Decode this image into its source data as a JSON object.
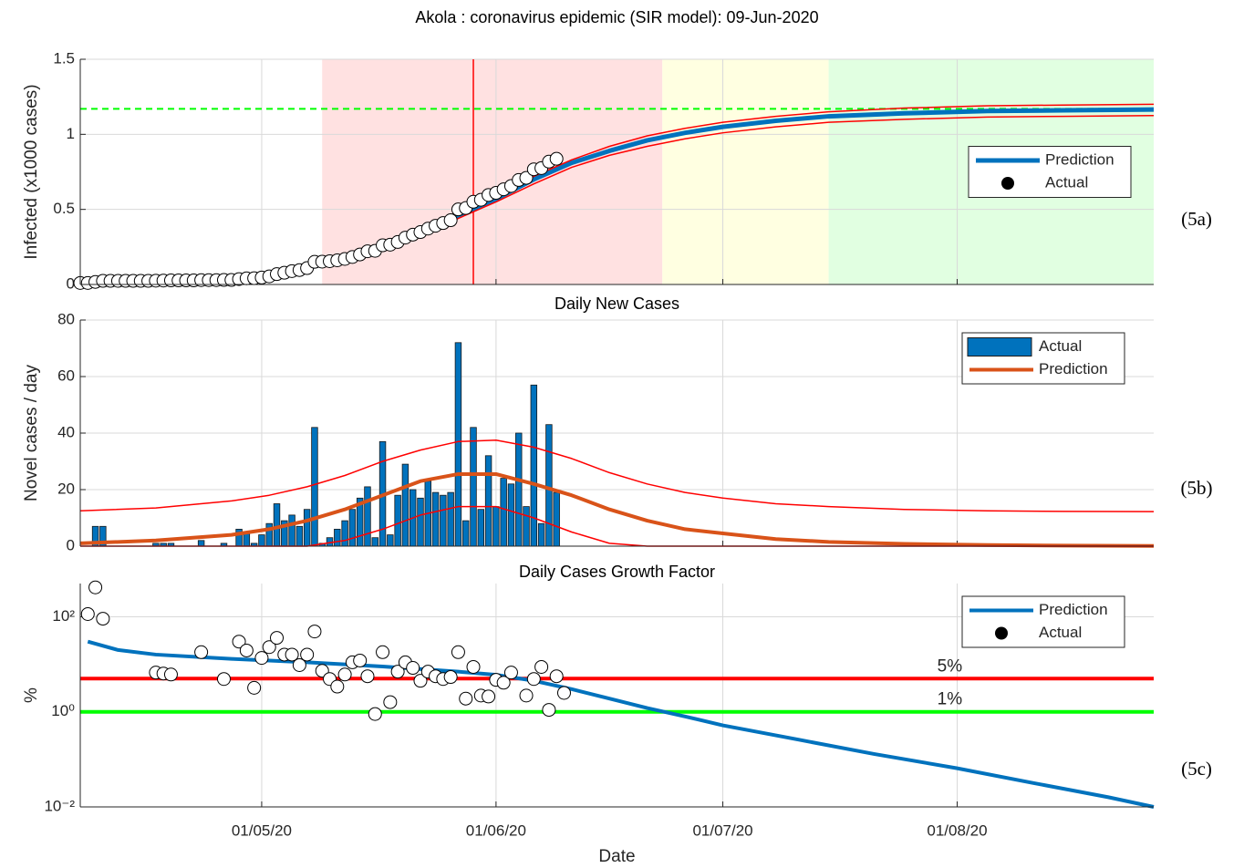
{
  "chart_data": [
    {
      "type": "line",
      "title": "Akola : coronavirus epidemic (SIR model):  09-Jun-2020",
      "tag": "(5a)",
      "ylabel": "Infected (x1000 cases)",
      "xlim": [
        "2020-04-07",
        "2020-08-27"
      ],
      "xticks": [
        "2020-05-01",
        "2020-06-01",
        "2020-07-01",
        "2020-08-01"
      ],
      "ylim": [
        0,
        1.5
      ],
      "yticks": [
        0,
        0.5,
        1,
        1.5
      ],
      "grid": true,
      "legend": "east",
      "regions": [
        {
          "from": "2020-05-09",
          "to": "2020-06-23",
          "color": "#ffe1e1"
        },
        {
          "from": "2020-06-23",
          "to": "2020-07-15",
          "color": "#ffffe1"
        },
        {
          "from": "2020-07-15",
          "to": "2020-08-27",
          "color": "#e1ffe1"
        }
      ],
      "hlines": [
        {
          "value": 1.17,
          "color": "#00ff00",
          "width": 2,
          "dashed": true
        }
      ],
      "vlines": [
        {
          "x": "2020-05-29",
          "color": "#ff0000"
        }
      ],
      "series": [
        {
          "name": "Prediction",
          "mode": "line",
          "color": "#0072bd",
          "width": 5,
          "x": [
            "2020-04-07",
            "2020-04-17",
            "2020-04-27",
            "2020-05-02",
            "2020-05-07",
            "2020-05-12",
            "2020-05-17",
            "2020-05-22",
            "2020-05-27",
            "2020-06-01",
            "2020-06-06",
            "2020-06-11",
            "2020-06-16",
            "2020-06-21",
            "2020-06-26",
            "2020-07-01",
            "2020-07-08",
            "2020-07-15",
            "2020-07-25",
            "2020-08-05",
            "2020-08-15",
            "2020-08-27"
          ],
          "values": [
            0.02,
            0.03,
            0.05,
            0.07,
            0.11,
            0.17,
            0.25,
            0.35,
            0.46,
            0.57,
            0.7,
            0.81,
            0.89,
            0.96,
            1.01,
            1.05,
            1.09,
            1.12,
            1.14,
            1.155,
            1.16,
            1.165
          ]
        },
        {
          "mode": "line",
          "color": "#ff0000",
          "width": 1.5,
          "x": [
            "2020-04-07",
            "2020-04-17",
            "2020-04-27",
            "2020-05-02",
            "2020-05-07",
            "2020-05-12",
            "2020-05-17",
            "2020-05-22",
            "2020-05-27",
            "2020-06-01",
            "2020-06-06",
            "2020-06-11",
            "2020-06-16",
            "2020-06-21",
            "2020-06-26",
            "2020-07-01",
            "2020-07-08",
            "2020-07-15",
            "2020-07-25",
            "2020-08-05",
            "2020-08-15",
            "2020-08-27"
          ],
          "values": [
            0.03,
            0.04,
            0.06,
            0.08,
            0.12,
            0.18,
            0.26,
            0.37,
            0.48,
            0.59,
            0.72,
            0.83,
            0.92,
            0.99,
            1.04,
            1.08,
            1.12,
            1.15,
            1.175,
            1.19,
            1.195,
            1.2
          ]
        },
        {
          "mode": "line",
          "color": "#ff0000",
          "width": 1.5,
          "x": [
            "2020-04-07",
            "2020-04-17",
            "2020-04-27",
            "2020-05-02",
            "2020-05-07",
            "2020-05-12",
            "2020-05-17",
            "2020-05-22",
            "2020-05-27",
            "2020-06-01",
            "2020-06-06",
            "2020-06-11",
            "2020-06-16",
            "2020-06-21",
            "2020-06-26",
            "2020-07-01",
            "2020-07-08",
            "2020-07-15",
            "2020-07-25",
            "2020-08-05",
            "2020-08-15",
            "2020-08-27"
          ],
          "values": [
            0.01,
            0.02,
            0.04,
            0.06,
            0.1,
            0.16,
            0.24,
            0.33,
            0.44,
            0.55,
            0.67,
            0.78,
            0.86,
            0.92,
            0.97,
            1.01,
            1.05,
            1.08,
            1.1,
            1.115,
            1.12,
            1.125
          ]
        },
        {
          "name": "Actual",
          "mode": "markers",
          "color": "#000000",
          "marker_fill": "#ffffff",
          "x": [
            "2020-04-07",
            "2020-04-08",
            "2020-04-09",
            "2020-04-10",
            "2020-04-11",
            "2020-04-12",
            "2020-04-13",
            "2020-04-14",
            "2020-04-15",
            "2020-04-16",
            "2020-04-17",
            "2020-04-18",
            "2020-04-19",
            "2020-04-20",
            "2020-04-21",
            "2020-04-22",
            "2020-04-23",
            "2020-04-24",
            "2020-04-25",
            "2020-04-26",
            "2020-04-27",
            "2020-04-28",
            "2020-04-29",
            "2020-04-30",
            "2020-05-01",
            "2020-05-02",
            "2020-05-03",
            "2020-05-04",
            "2020-05-05",
            "2020-05-06",
            "2020-05-07",
            "2020-05-08",
            "2020-05-09",
            "2020-05-10",
            "2020-05-11",
            "2020-05-12",
            "2020-05-13",
            "2020-05-14",
            "2020-05-15",
            "2020-05-16",
            "2020-05-17",
            "2020-05-18",
            "2020-05-19",
            "2020-05-20",
            "2020-05-21",
            "2020-05-22",
            "2020-05-23",
            "2020-05-24",
            "2020-05-25",
            "2020-05-26",
            "2020-05-27",
            "2020-05-28",
            "2020-05-29",
            "2020-05-30",
            "2020-05-31",
            "2020-06-01",
            "2020-06-02",
            "2020-06-03",
            "2020-06-04",
            "2020-06-05",
            "2020-06-06",
            "2020-06-07",
            "2020-06-08",
            "2020-06-09"
          ],
          "values": [
            0.01,
            0.01,
            0.017,
            0.024,
            0.024,
            0.024,
            0.024,
            0.024,
            0.024,
            0.024,
            0.025,
            0.026,
            0.027,
            0.027,
            0.027,
            0.027,
            0.029,
            0.029,
            0.029,
            0.03,
            0.03,
            0.036,
            0.041,
            0.042,
            0.046,
            0.054,
            0.069,
            0.078,
            0.089,
            0.096,
            0.109,
            0.151,
            0.152,
            0.155,
            0.161,
            0.17,
            0.183,
            0.2,
            0.221,
            0.224,
            0.261,
            0.265,
            0.283,
            0.312,
            0.332,
            0.349,
            0.372,
            0.391,
            0.409,
            0.428,
            0.5,
            0.509,
            0.551,
            0.564,
            0.596,
            0.61,
            0.634,
            0.656,
            0.696,
            0.71,
            0.767,
            0.775,
            0.818,
            0.837
          ]
        }
      ]
    },
    {
      "type": "bar",
      "title": "Daily New Cases",
      "tag": "(5b)",
      "ylabel": "Novel cases / day",
      "xlim": [
        "2020-04-07",
        "2020-08-27"
      ],
      "xticks": [
        "2020-05-01",
        "2020-06-01",
        "2020-07-01",
        "2020-08-01"
      ],
      "ylim": [
        0,
        80
      ],
      "yticks": [
        0,
        20,
        40,
        60,
        80
      ],
      "grid": true,
      "legend": "northeast",
      "series": [
        {
          "name": "Actual",
          "mode": "bar",
          "color": "#0072bd",
          "edgecolor": "#1a1a1a",
          "x": [
            "2020-04-07",
            "2020-04-08",
            "2020-04-09",
            "2020-04-10",
            "2020-04-11",
            "2020-04-12",
            "2020-04-13",
            "2020-04-14",
            "2020-04-15",
            "2020-04-16",
            "2020-04-17",
            "2020-04-18",
            "2020-04-19",
            "2020-04-20",
            "2020-04-21",
            "2020-04-22",
            "2020-04-23",
            "2020-04-24",
            "2020-04-25",
            "2020-04-26",
            "2020-04-27",
            "2020-04-28",
            "2020-04-29",
            "2020-04-30",
            "2020-05-01",
            "2020-05-02",
            "2020-05-03",
            "2020-05-04",
            "2020-05-05",
            "2020-05-06",
            "2020-05-07",
            "2020-05-08",
            "2020-05-09",
            "2020-05-10",
            "2020-05-11",
            "2020-05-12",
            "2020-05-13",
            "2020-05-14",
            "2020-05-15",
            "2020-05-16",
            "2020-05-17",
            "2020-05-18",
            "2020-05-19",
            "2020-05-20",
            "2020-05-21",
            "2020-05-22",
            "2020-05-23",
            "2020-05-24",
            "2020-05-25",
            "2020-05-26",
            "2020-05-27",
            "2020-05-28",
            "2020-05-29",
            "2020-05-30",
            "2020-05-31",
            "2020-06-01",
            "2020-06-02",
            "2020-06-03",
            "2020-06-04",
            "2020-06-05",
            "2020-06-06",
            "2020-06-07",
            "2020-06-08",
            "2020-06-09"
          ],
          "values": [
            0,
            0,
            7,
            7,
            0,
            0,
            0,
            0,
            0,
            0,
            1,
            1,
            1,
            0,
            0,
            0,
            2,
            0,
            0,
            1,
            0,
            6,
            5,
            1,
            4,
            8,
            15,
            9,
            11,
            7,
            13,
            42,
            1,
            3,
            6,
            9,
            13,
            17,
            21,
            3,
            37,
            4,
            18,
            29,
            20,
            17,
            23,
            19,
            18,
            19,
            72,
            9,
            42,
            13,
            32,
            14,
            24,
            22,
            40,
            14,
            57,
            8,
            43,
            19
          ]
        },
        {
          "name": "Prediction",
          "mode": "line",
          "color": "#d95319",
          "width": 4,
          "x": [
            "2020-04-07",
            "2020-04-17",
            "2020-04-27",
            "2020-05-02",
            "2020-05-07",
            "2020-05-12",
            "2020-05-17",
            "2020-05-22",
            "2020-05-27",
            "2020-06-01",
            "2020-06-06",
            "2020-06-11",
            "2020-06-16",
            "2020-06-21",
            "2020-06-26",
            "2020-07-01",
            "2020-07-08",
            "2020-07-15",
            "2020-07-25",
            "2020-08-05",
            "2020-08-15",
            "2020-08-27"
          ],
          "values": [
            1,
            2,
            4,
            6,
            9,
            13,
            18,
            23,
            25.5,
            25.5,
            22,
            18,
            13,
            9,
            6,
            4.5,
            2.5,
            1.5,
            0.8,
            0.4,
            0.2,
            0.1
          ]
        },
        {
          "mode": "line",
          "color": "#ff0000",
          "width": 1.5,
          "x": [
            "2020-04-07",
            "2020-04-17",
            "2020-04-27",
            "2020-05-02",
            "2020-05-07",
            "2020-05-12",
            "2020-05-17",
            "2020-05-22",
            "2020-05-27",
            "2020-06-01",
            "2020-06-06",
            "2020-06-11",
            "2020-06-16",
            "2020-06-21",
            "2020-06-26",
            "2020-07-01",
            "2020-07-08",
            "2020-07-15",
            "2020-07-25",
            "2020-08-05",
            "2020-08-15",
            "2020-08-27"
          ],
          "values": [
            12.5,
            13.5,
            16,
            18,
            21,
            25,
            30,
            34,
            37,
            37.5,
            35,
            31,
            26,
            22,
            19,
            17,
            15,
            14,
            13,
            12.5,
            12.3,
            12.2
          ]
        },
        {
          "mode": "line",
          "color": "#ff0000",
          "width": 1.5,
          "x": [
            "2020-04-07",
            "2020-04-17",
            "2020-04-27",
            "2020-05-02",
            "2020-05-07",
            "2020-05-12",
            "2020-05-17",
            "2020-05-22",
            "2020-05-27",
            "2020-06-01",
            "2020-06-06",
            "2020-06-11",
            "2020-06-16",
            "2020-06-21",
            "2020-06-26",
            "2020-07-01",
            "2020-07-08",
            "2020-07-15",
            "2020-07-25",
            "2020-08-05",
            "2020-08-15",
            "2020-08-27"
          ],
          "values": [
            0,
            0,
            0,
            0,
            0,
            2,
            6,
            11,
            14,
            14,
            10,
            5,
            1,
            0,
            0,
            0,
            0,
            0,
            0,
            0,
            0,
            0
          ]
        }
      ]
    },
    {
      "type": "line",
      "title": "Daily Cases Growth Factor",
      "tag": "(5c)",
      "ylabel": "%",
      "xlabel": "Date",
      "xlim": [
        "2020-04-07",
        "2020-08-27"
      ],
      "xticks": [
        {
          "value": "2020-05-01",
          "label": "01/05/20"
        },
        {
          "value": "2020-06-01",
          "label": "01/06/20"
        },
        {
          "value": "2020-07-01",
          "label": "01/07/20"
        },
        {
          "value": "2020-08-01",
          "label": "01/08/20"
        }
      ],
      "yscale": "log",
      "ylim": [
        0.01,
        500
      ],
      "yticks": [
        {
          "value": 0.01,
          "label": "10⁻²"
        },
        {
          "value": 1,
          "label": "10⁰"
        },
        {
          "value": 100,
          "label": "10²"
        }
      ],
      "grid": true,
      "legend": "northeast",
      "hlines": [
        {
          "value": 5,
          "label": "5%",
          "color": "#ff0000",
          "width": 4
        },
        {
          "value": 1,
          "label": "1%",
          "color": "#00ff00",
          "width": 4
        }
      ],
      "series": [
        {
          "name": "Prediction",
          "mode": "line",
          "color": "#0072bd",
          "width": 4,
          "x": [
            "2020-04-08",
            "2020-04-12",
            "2020-04-17",
            "2020-04-27",
            "2020-05-07",
            "2020-05-17",
            "2020-05-27",
            "2020-06-01",
            "2020-06-06",
            "2020-06-11",
            "2020-06-16",
            "2020-06-21",
            "2020-06-26",
            "2020-07-01",
            "2020-07-11",
            "2020-07-21",
            "2020-08-01",
            "2020-08-11",
            "2020-08-21",
            "2020-08-27"
          ],
          "values": [
            30,
            20,
            16,
            13,
            11,
            9,
            7,
            6,
            4.5,
            3,
            1.9,
            1.2,
            0.8,
            0.52,
            0.26,
            0.13,
            0.065,
            0.032,
            0.016,
            0.01
          ]
        },
        {
          "name": "Actual",
          "mode": "markers",
          "color": "#000000",
          "marker_fill": "#ffffff",
          "x": [
            "2020-04-08",
            "2020-04-09",
            "2020-04-10",
            "2020-04-17",
            "2020-04-18",
            "2020-04-19",
            "2020-04-23",
            "2020-04-26",
            "2020-04-28",
            "2020-04-29",
            "2020-04-30",
            "2020-05-01",
            "2020-05-02",
            "2020-05-03",
            "2020-05-04",
            "2020-05-05",
            "2020-05-06",
            "2020-05-07",
            "2020-05-08",
            "2020-05-09",
            "2020-05-10",
            "2020-05-11",
            "2020-05-12",
            "2020-05-13",
            "2020-05-14",
            "2020-05-15",
            "2020-05-16",
            "2020-05-17",
            "2020-05-18",
            "2020-05-19",
            "2020-05-20",
            "2020-05-21",
            "2020-05-22",
            "2020-05-23",
            "2020-05-24",
            "2020-05-25",
            "2020-05-26",
            "2020-05-27",
            "2020-05-28",
            "2020-05-29",
            "2020-05-30",
            "2020-05-31",
            "2020-06-01",
            "2020-06-02",
            "2020-06-03",
            "2020-06-05",
            "2020-06-06",
            "2020-06-07",
            "2020-06-08",
            "2020-06-09",
            "2020-06-10"
          ],
          "values": [
            114,
            415,
            91,
            6.7,
            6.4,
            6.1,
            18,
            4.9,
            30,
            19.5,
            3.2,
            13.6,
            23,
            36,
            16,
            16,
            9.6,
            16,
            49,
            7.3,
            4.9,
            3.4,
            6.1,
            11,
            12,
            5.6,
            0.9,
            18,
            1.6,
            7,
            11,
            8.4,
            4.5,
            7,
            5.6,
            4.9,
            5.4,
            18,
            1.9,
            8.8,
            2.2,
            2.1,
            4.7,
            4.1,
            6.7,
            2.2,
            4.9,
            8.8,
            1.1,
            5.6,
            2.5
          ]
        }
      ]
    }
  ]
}
